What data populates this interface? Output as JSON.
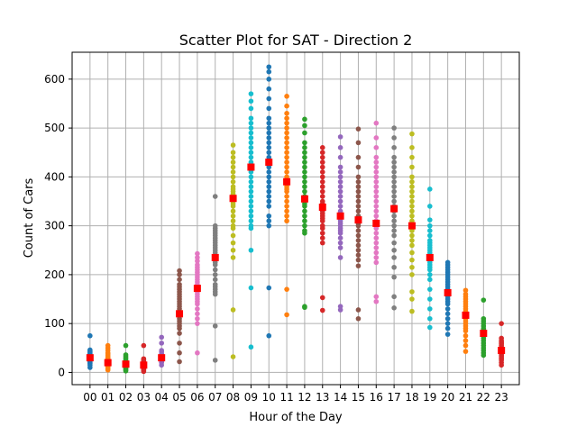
{
  "chart_data": {
    "type": "scatter",
    "title": "Scatter Plot for SAT - Direction 2",
    "xlabel": "Hour of the Day",
    "ylabel": "Count of Cars",
    "categories": [
      "00",
      "01",
      "02",
      "03",
      "04",
      "05",
      "06",
      "07",
      "08",
      "09",
      "10",
      "11",
      "12",
      "13",
      "14",
      "15",
      "16",
      "17",
      "18",
      "19",
      "20",
      "21",
      "22",
      "23"
    ],
    "yticks": [
      0,
      100,
      200,
      300,
      400,
      500,
      600
    ],
    "ylim": [
      -25,
      655
    ],
    "grid": true,
    "mean_color": "#ff0000",
    "colors": [
      "#1f77b4",
      "#ff7f0e",
      "#2ca02c",
      "#d62728",
      "#9467bd",
      "#8c564b",
      "#e377c2",
      "#7f7f7f",
      "#bcbd22",
      "#17becf"
    ],
    "hours": [
      {
        "hour": "00",
        "mean": 30,
        "values": [
          10,
          15,
          18,
          20,
          22,
          24,
          25,
          26,
          28,
          29,
          30,
          31,
          32,
          33,
          34,
          35,
          36,
          37,
          38,
          40,
          42,
          44,
          46,
          75
        ]
      },
      {
        "hour": "01",
        "mean": 20,
        "values": [
          5,
          8,
          10,
          12,
          14,
          16,
          18,
          19,
          20,
          21,
          22,
          24,
          26,
          28,
          30,
          32,
          35,
          38,
          40,
          45,
          50,
          55
        ]
      },
      {
        "hour": "02",
        "mean": 17,
        "values": [
          3,
          5,
          7,
          9,
          11,
          13,
          15,
          16,
          17,
          18,
          19,
          20,
          22,
          24,
          27,
          30,
          33,
          36,
          55
        ]
      },
      {
        "hour": "03",
        "mean": 15,
        "values": [
          2,
          4,
          6,
          8,
          10,
          12,
          14,
          15,
          16,
          17,
          18,
          19,
          20,
          22,
          24,
          26,
          28,
          55
        ]
      },
      {
        "hour": "04",
        "mean": 30,
        "values": [
          15,
          20,
          22,
          24,
          26,
          28,
          30,
          31,
          32,
          34,
          36,
          38,
          42,
          45,
          60,
          72
        ]
      },
      {
        "hour": "05",
        "mean": 120,
        "values": [
          22,
          40,
          60,
          80,
          90,
          95,
          100,
          105,
          110,
          115,
          118,
          120,
          122,
          125,
          130,
          135,
          140,
          145,
          150,
          155,
          160,
          165,
          170,
          175,
          180,
          190,
          200,
          208
        ]
      },
      {
        "hour": "06",
        "mean": 172,
        "values": [
          40,
          100,
          110,
          120,
          130,
          140,
          145,
          150,
          155,
          160,
          165,
          170,
          172,
          175,
          180,
          185,
          190,
          195,
          200,
          205,
          210,
          215,
          220,
          228,
          235,
          243
        ]
      },
      {
        "hour": "07",
        "mean": 235,
        "values": [
          25,
          95,
          160,
          165,
          170,
          175,
          180,
          190,
          200,
          210,
          220,
          225,
          230,
          235,
          240,
          245,
          250,
          255,
          260,
          265,
          270,
          275,
          280,
          285,
          290,
          295,
          300,
          360
        ]
      },
      {
        "hour": "08",
        "mean": 356,
        "values": [
          32,
          128,
          235,
          250,
          265,
          280,
          295,
          300,
          310,
          320,
          330,
          340,
          345,
          350,
          355,
          360,
          365,
          370,
          375,
          380,
          390,
          400,
          410,
          420,
          430,
          440,
          450,
          465
        ]
      },
      {
        "hour": "09",
        "mean": 420,
        "values": [
          52,
          173,
          250,
          295,
          300,
          310,
          320,
          330,
          340,
          350,
          360,
          370,
          380,
          390,
          400,
          410,
          415,
          420,
          425,
          430,
          440,
          450,
          460,
          470,
          480,
          490,
          500,
          510,
          520,
          540,
          555,
          570
        ]
      },
      {
        "hour": "10",
        "mean": 430,
        "values": [
          75,
          173,
          300,
          310,
          320,
          340,
          350,
          360,
          370,
          380,
          390,
          400,
          410,
          420,
          430,
          435,
          440,
          450,
          460,
          470,
          480,
          490,
          500,
          510,
          520,
          540,
          560,
          580,
          600,
          615,
          625
        ]
      },
      {
        "hour": "11",
        "mean": 390,
        "values": [
          118,
          170,
          310,
          320,
          330,
          340,
          350,
          360,
          370,
          375,
          380,
          385,
          390,
          395,
          400,
          410,
          420,
          430,
          440,
          450,
          460,
          470,
          480,
          490,
          500,
          510,
          520,
          530,
          545,
          565
        ]
      },
      {
        "hour": "12",
        "mean": 355,
        "values": [
          133,
          135,
          285,
          290,
          300,
          310,
          320,
          330,
          340,
          345,
          350,
          355,
          360,
          370,
          380,
          390,
          400,
          410,
          420,
          430,
          440,
          450,
          460,
          470,
          490,
          505,
          518
        ]
      },
      {
        "hour": "13",
        "mean": 338,
        "values": [
          127,
          153,
          265,
          275,
          285,
          295,
          300,
          310,
          315,
          320,
          325,
          330,
          335,
          340,
          345,
          350,
          360,
          370,
          380,
          390,
          400,
          410,
          420,
          430,
          440,
          450,
          460
        ]
      },
      {
        "hour": "14",
        "mean": 320,
        "values": [
          128,
          135,
          235,
          255,
          265,
          275,
          285,
          290,
          295,
          300,
          305,
          310,
          315,
          320,
          325,
          330,
          340,
          350,
          360,
          370,
          380,
          390,
          400,
          410,
          420,
          440,
          460,
          482
        ]
      },
      {
        "hour": "15",
        "mean": 312,
        "values": [
          110,
          128,
          218,
          230,
          240,
          250,
          260,
          270,
          280,
          290,
          300,
          305,
          310,
          315,
          320,
          330,
          340,
          350,
          360,
          370,
          380,
          390,
          400,
          420,
          440,
          470,
          498
        ]
      },
      {
        "hour": "16",
        "mean": 305,
        "values": [
          145,
          155,
          225,
          235,
          245,
          255,
          265,
          275,
          285,
          295,
          300,
          305,
          310,
          320,
          330,
          340,
          350,
          360,
          370,
          380,
          390,
          400,
          410,
          420,
          430,
          440,
          460,
          480,
          510
        ]
      },
      {
        "hour": "17",
        "mean": 335,
        "values": [
          132,
          155,
          195,
          215,
          235,
          250,
          265,
          280,
          290,
          300,
          310,
          320,
          330,
          335,
          340,
          350,
          360,
          370,
          380,
          390,
          400,
          410,
          420,
          430,
          440,
          460,
          480,
          500
        ]
      },
      {
        "hour": "18",
        "mean": 300,
        "values": [
          125,
          150,
          165,
          200,
          215,
          230,
          245,
          260,
          270,
          280,
          290,
          295,
          300,
          305,
          310,
          320,
          330,
          340,
          350,
          360,
          370,
          380,
          390,
          400,
          420,
          440,
          460,
          488
        ]
      },
      {
        "hour": "19",
        "mean": 235,
        "values": [
          92,
          110,
          130,
          150,
          170,
          190,
          200,
          210,
          215,
          220,
          225,
          230,
          235,
          240,
          245,
          250,
          255,
          260,
          265,
          270,
          280,
          290,
          300,
          312,
          340,
          375
        ]
      },
      {
        "hour": "20",
        "mean": 163,
        "values": [
          78,
          90,
          100,
          110,
          120,
          130,
          140,
          145,
          150,
          155,
          160,
          163,
          165,
          170,
          175,
          180,
          185,
          190,
          195,
          200,
          205,
          210,
          215,
          220,
          225
        ]
      },
      {
        "hour": "21",
        "mean": 117,
        "values": [
          43,
          55,
          65,
          75,
          85,
          90,
          95,
          100,
          105,
          110,
          115,
          117,
          120,
          125,
          130,
          135,
          140,
          145,
          150,
          155,
          160,
          168
        ]
      },
      {
        "hour": "22",
        "mean": 80,
        "values": [
          35,
          40,
          45,
          50,
          55,
          60,
          65,
          70,
          75,
          78,
          80,
          82,
          85,
          88,
          90,
          95,
          100,
          105,
          110,
          148
        ]
      },
      {
        "hour": "23",
        "mean": 45,
        "values": [
          15,
          20,
          25,
          28,
          30,
          33,
          35,
          38,
          40,
          42,
          45,
          48,
          50,
          52,
          55,
          58,
          60,
          62,
          65,
          70,
          100
        ]
      }
    ]
  }
}
